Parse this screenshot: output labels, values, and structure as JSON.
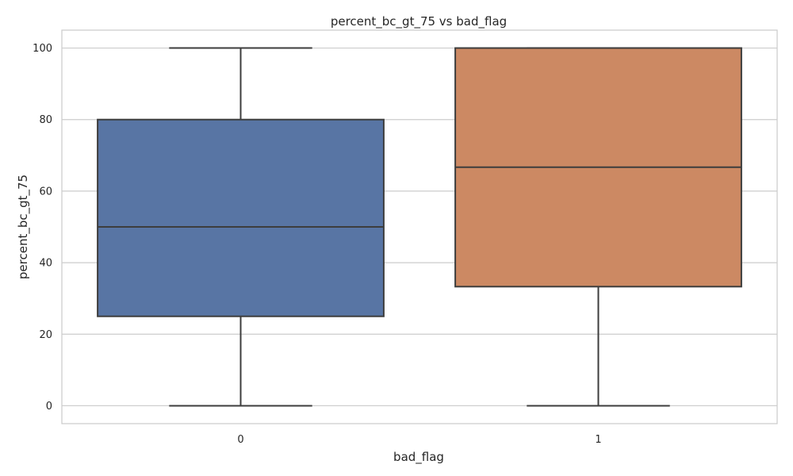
{
  "chart_data": {
    "type": "boxplot",
    "title": "percent_bc_gt_75 vs bad_flag",
    "xlabel": "bad_flag",
    "ylabel": "percent_bc_gt_75",
    "categories": [
      "0",
      "1"
    ],
    "boxes": [
      {
        "category": "0",
        "min": 0,
        "q1": 25,
        "median": 50,
        "q3": 80,
        "max": 100
      },
      {
        "category": "1",
        "min": 0,
        "q1": 33.3,
        "median": 66.7,
        "q3": 100,
        "max": 100
      }
    ],
    "y_ticks": [
      0,
      20,
      40,
      60,
      80,
      100
    ],
    "ylim": [
      -5,
      105
    ],
    "grid": "horizontal",
    "colors": {
      "box_0": "#5875a4",
      "box_1": "#cc8963",
      "line": "#3d3d3d",
      "grid": "#cccccc",
      "frame": "#cccccc"
    }
  }
}
